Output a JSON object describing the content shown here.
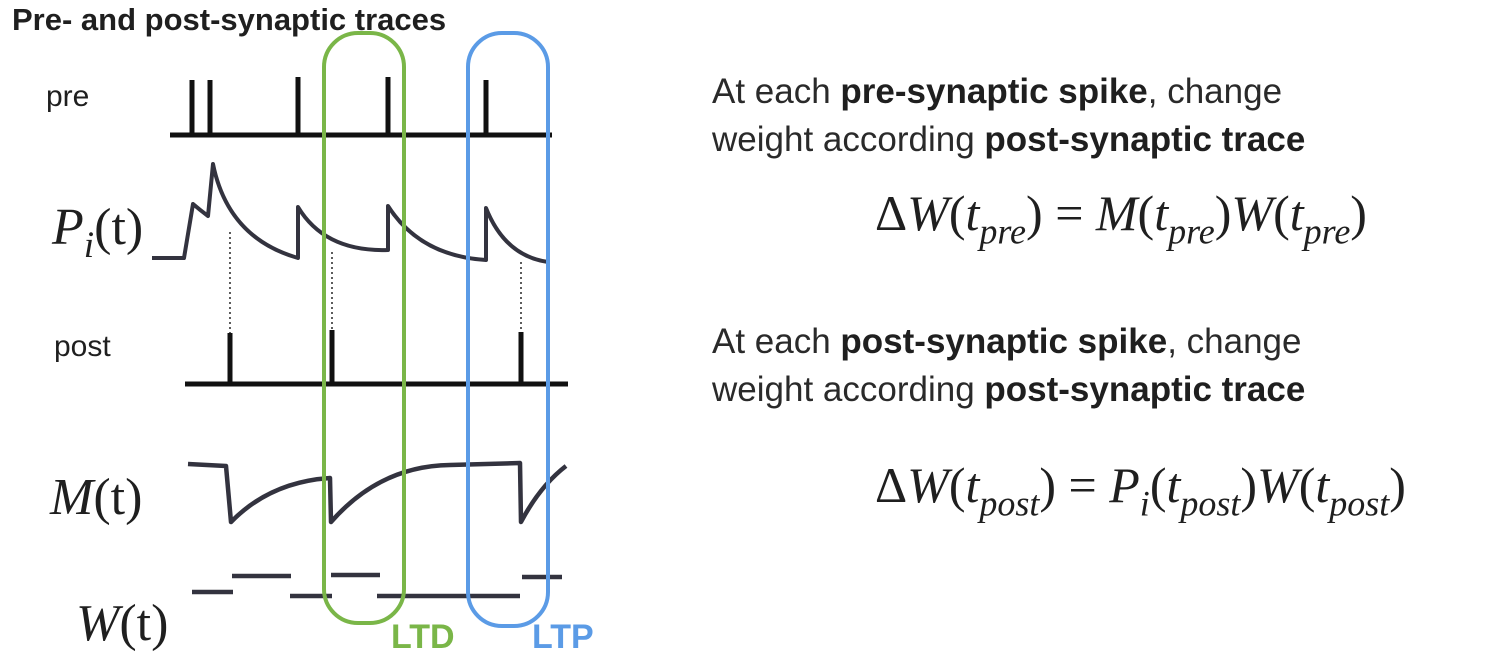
{
  "title": "Pre- and post-synaptic traces",
  "labels": {
    "pre": "pre",
    "post": "post",
    "P_trace": {
      "sym": "P",
      "sub": "i",
      "arg": "(t)"
    },
    "M_trace": {
      "sym": "M",
      "arg": "(t)"
    },
    "W_trace": {
      "sym": "W",
      "arg": "(t)"
    }
  },
  "windows": {
    "ltd": {
      "label": "LTD",
      "color": "#7ab648"
    },
    "ltp": {
      "label": "LTP",
      "color": "#5b9be6"
    }
  },
  "rules": {
    "pre": {
      "line1_a": "At each ",
      "line1_b": "pre-synaptic spike",
      "line1_c": ", change",
      "line2_a": "weight according ",
      "line2_b": "post-synaptic trace",
      "equation": {
        "lhs_delta": "Δ",
        "lhs_W": "W",
        "lhs_open": "(",
        "lhs_t": "t",
        "lhs_sub": "pre",
        "lhs_close": ")",
        "eq": " = ",
        "r1_sym": "M",
        "r1_open": "(",
        "r1_t": "t",
        "r1_sub": "pre",
        "r1_close": ")",
        "r2_sym": "W",
        "r2_open": "(",
        "r2_t": "t",
        "r2_sub": "pre",
        "r2_close": ")"
      }
    },
    "post": {
      "line1_a": "At each ",
      "line1_b": "post-synaptic spike",
      "line1_c": ", change",
      "line2_a": "weight according ",
      "line2_b": "post-synaptic trace",
      "equation": {
        "lhs_delta": "Δ",
        "lhs_W": "W",
        "lhs_open": "(",
        "lhs_t": "t",
        "lhs_sub": "post",
        "lhs_close": ")",
        "eq": " = ",
        "r1_sym": "P",
        "r1_symsub": "i",
        "r1_open": "(",
        "r1_t": "t",
        "r1_sub": "post",
        "r1_close": ")",
        "r2_sym": "W",
        "r2_open": "(",
        "r2_t": "t",
        "r2_sub": "post",
        "r2_close": ")"
      }
    }
  },
  "colors": {
    "ink": "#1f1f1f",
    "trace": "#33333f",
    "ltd": "#7ab648",
    "ltp": "#5b9be6"
  }
}
